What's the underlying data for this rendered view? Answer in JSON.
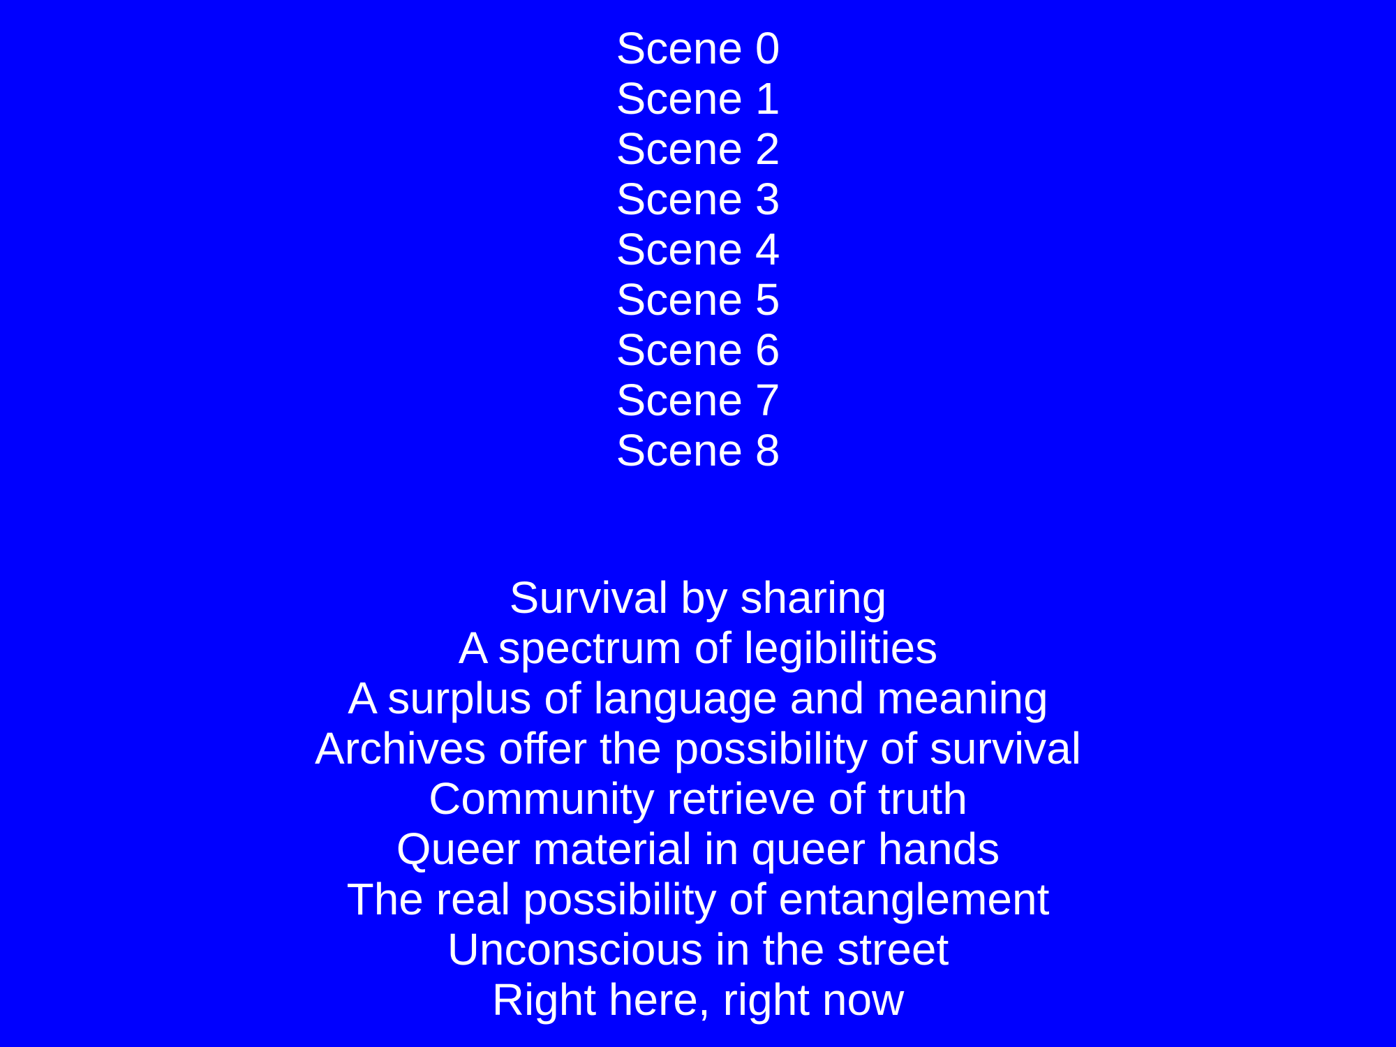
{
  "slide": {
    "background_color": "#0000ff",
    "text_color": "#ffffff",
    "scenes": [
      "Scene 0",
      "Scene 1",
      "Scene 2",
      "Scene 3",
      "Scene 4",
      "Scene 5",
      "Scene 6",
      "Scene 7",
      "Scene 8"
    ],
    "phrases": [
      "Survival by sharing",
      "A spectrum of legibilities",
      "A surplus of language and meaning",
      "Archives offer the possibility of survival",
      "Community retrieve of truth",
      "Queer material in queer hands",
      "The real possibility of entanglement",
      "Unconscious in the street",
      "Right here, right now"
    ]
  }
}
